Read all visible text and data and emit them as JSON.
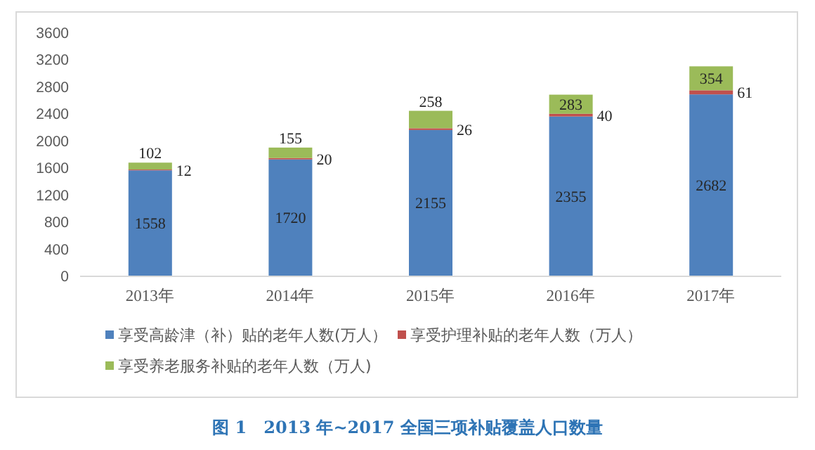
{
  "chart_data": {
    "type": "bar",
    "stacked": true,
    "title": "图 1　2013 年~2017 全国三项补贴覆盖人口数量",
    "categories": [
      "2013年",
      "2014年",
      "2015年",
      "2016年",
      "2017年"
    ],
    "series": [
      {
        "name": "享受高龄津（补）贴的老年人数(万人）",
        "color": "#4f81bd",
        "values": [
          1558,
          1720,
          2155,
          2355,
          2682
        ]
      },
      {
        "name": "享受护理补贴的老年人数（万人）",
        "color": "#c0504d",
        "values": [
          12,
          20,
          26,
          40,
          61
        ]
      },
      {
        "name": "享受养老服务补贴的老年人数（万人)",
        "color": "#9bbb59",
        "values": [
          102,
          155,
          258,
          283,
          354
        ]
      }
    ],
    "ylim": [
      0,
      3600
    ],
    "yticks": [
      0,
      400,
      800,
      1200,
      1600,
      2000,
      2400,
      2800,
      3200,
      3600
    ],
    "grid": false,
    "legend": "bottom",
    "data_labels": true
  }
}
